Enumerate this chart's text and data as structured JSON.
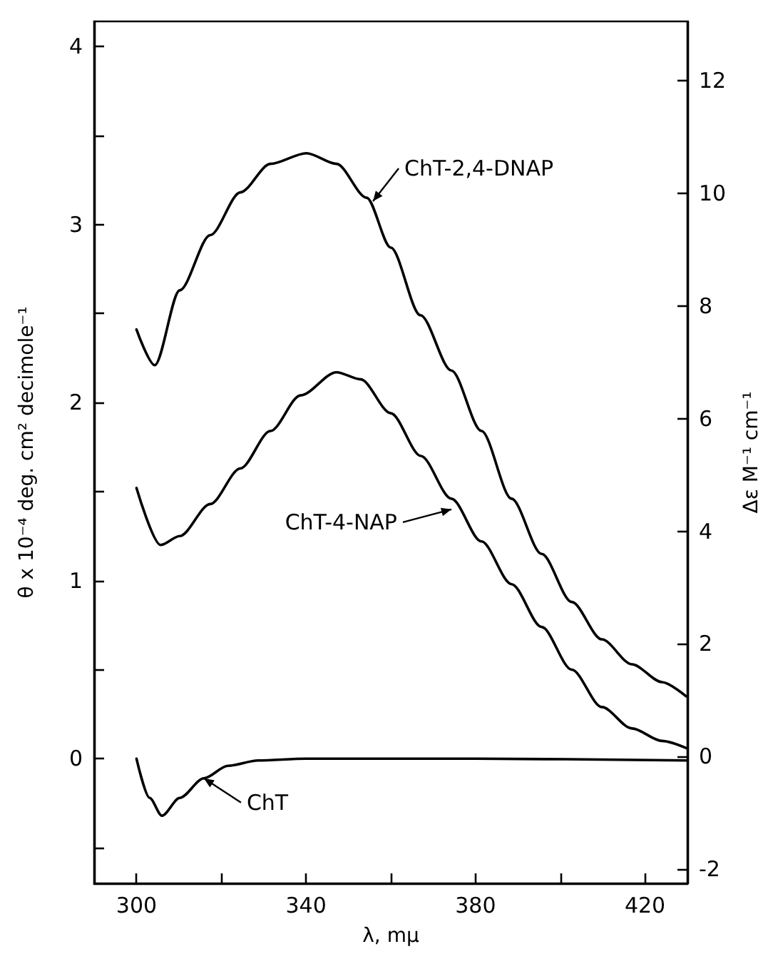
{
  "chart_data": {
    "type": "line",
    "xlabel": "λ, mμ",
    "ylabel": "θ x 10⁻⁴ deg. cm² decimole⁻¹",
    "y2label": "Δε M⁻¹ cm⁻¹",
    "xlim": [
      290,
      430
    ],
    "xticks": [
      300,
      {
        "value": 320,
        "label": null
      },
      340,
      {
        "value": 360,
        "label": null
      },
      380,
      {
        "value": 400,
        "label": null
      },
      420
    ],
    "ylim": [
      -0.7,
      4.14
    ],
    "yticks": [
      {
        "value": -0.5,
        "label": null
      },
      0,
      {
        "value": 0.5,
        "label": null
      },
      1,
      {
        "value": 1.5,
        "label": null
      },
      2,
      {
        "value": 2.5,
        "label": null
      },
      3,
      {
        "value": 3.5,
        "label": null
      },
      4
    ],
    "y2lim": [
      -2.25,
      13.05
    ],
    "y2ticks": [
      -2,
      0,
      2,
      4,
      6,
      8,
      10,
      12
    ],
    "grid": false,
    "marker": "none",
    "line_style": "solid",
    "series": [
      {
        "color": "#000000",
        "x": [
          300,
          304.3,
          310.2,
          317.4,
          324.5,
          331.6,
          340.1,
          347.2,
          354.3,
          360,
          367,
          374.3,
          381.4,
          388.5,
          395.6,
          402.7,
          409.8,
          416.9,
          424,
          429.7
        ],
        "values": [
          2.41,
          2.21,
          2.63,
          2.94,
          3.18,
          3.34,
          3.4,
          3.34,
          3.15,
          2.87,
          2.49,
          2.18,
          1.84,
          1.46,
          1.15,
          0.88,
          0.67,
          0.53,
          0.43,
          0.35
        ]
      },
      {
        "color": "#000000",
        "x": [
          300,
          305.7,
          310.2,
          317.4,
          324.5,
          331.6,
          338.7,
          347.2,
          352.9,
          360,
          367.1,
          374.3,
          381.4,
          388.5,
          395.6,
          402.7,
          409.8,
          416.9,
          424,
          429.7
        ],
        "values": [
          1.52,
          1.2,
          1.25,
          1.43,
          1.63,
          1.84,
          2.04,
          2.17,
          2.13,
          1.94,
          1.7,
          1.46,
          1.22,
          0.98,
          0.74,
          0.5,
          0.29,
          0.17,
          0.1,
          0.06
        ]
      },
      {
        "color": "#000000",
        "x": [
          300,
          303.1,
          306,
          310.2,
          315.9,
          321.6,
          328.7,
          340,
          380,
          429.7
        ],
        "values": [
          0,
          -0.22,
          -0.32,
          -0.22,
          -0.11,
          -0.04,
          -0.01,
          0,
          0,
          -0.01
        ]
      }
    ],
    "annotations": [
      {
        "text": "ChT-2,4-DNAP",
        "x": 355.8,
        "y": 3.13
      },
      {
        "text": "ChT-4-NAP",
        "x": 374.3,
        "y": 1.4
      },
      {
        "text": "ChT",
        "x": 315.9,
        "y": -0.11
      }
    ]
  }
}
